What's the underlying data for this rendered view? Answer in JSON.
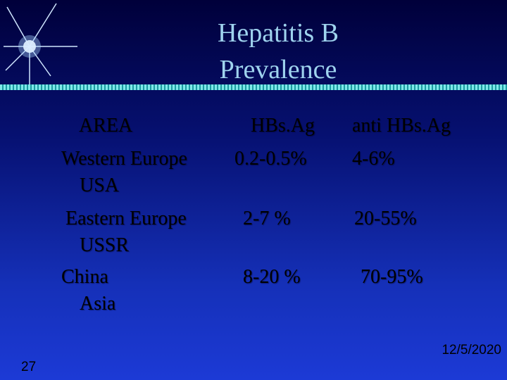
{
  "title": [
    "Hepatitis B",
    "Prevalence"
  ],
  "table": {
    "header": [
      "AREA",
      "HBs.Ag",
      "anti HBs.Ag"
    ],
    "rows": [
      [
        [
          "Western Europe",
          "USA"
        ],
        "0.2-0.5%",
        "4-6%"
      ],
      [
        [
          "Eastern Europe",
          "USSR"
        ],
        "2-7 %",
        "20-55%"
      ],
      [
        [
          "China",
          "Asia"
        ],
        "8-20 %",
        "70-95%"
      ]
    ]
  },
  "footer": {
    "date": "12/5/2020",
    "slide_number": "27"
  }
}
